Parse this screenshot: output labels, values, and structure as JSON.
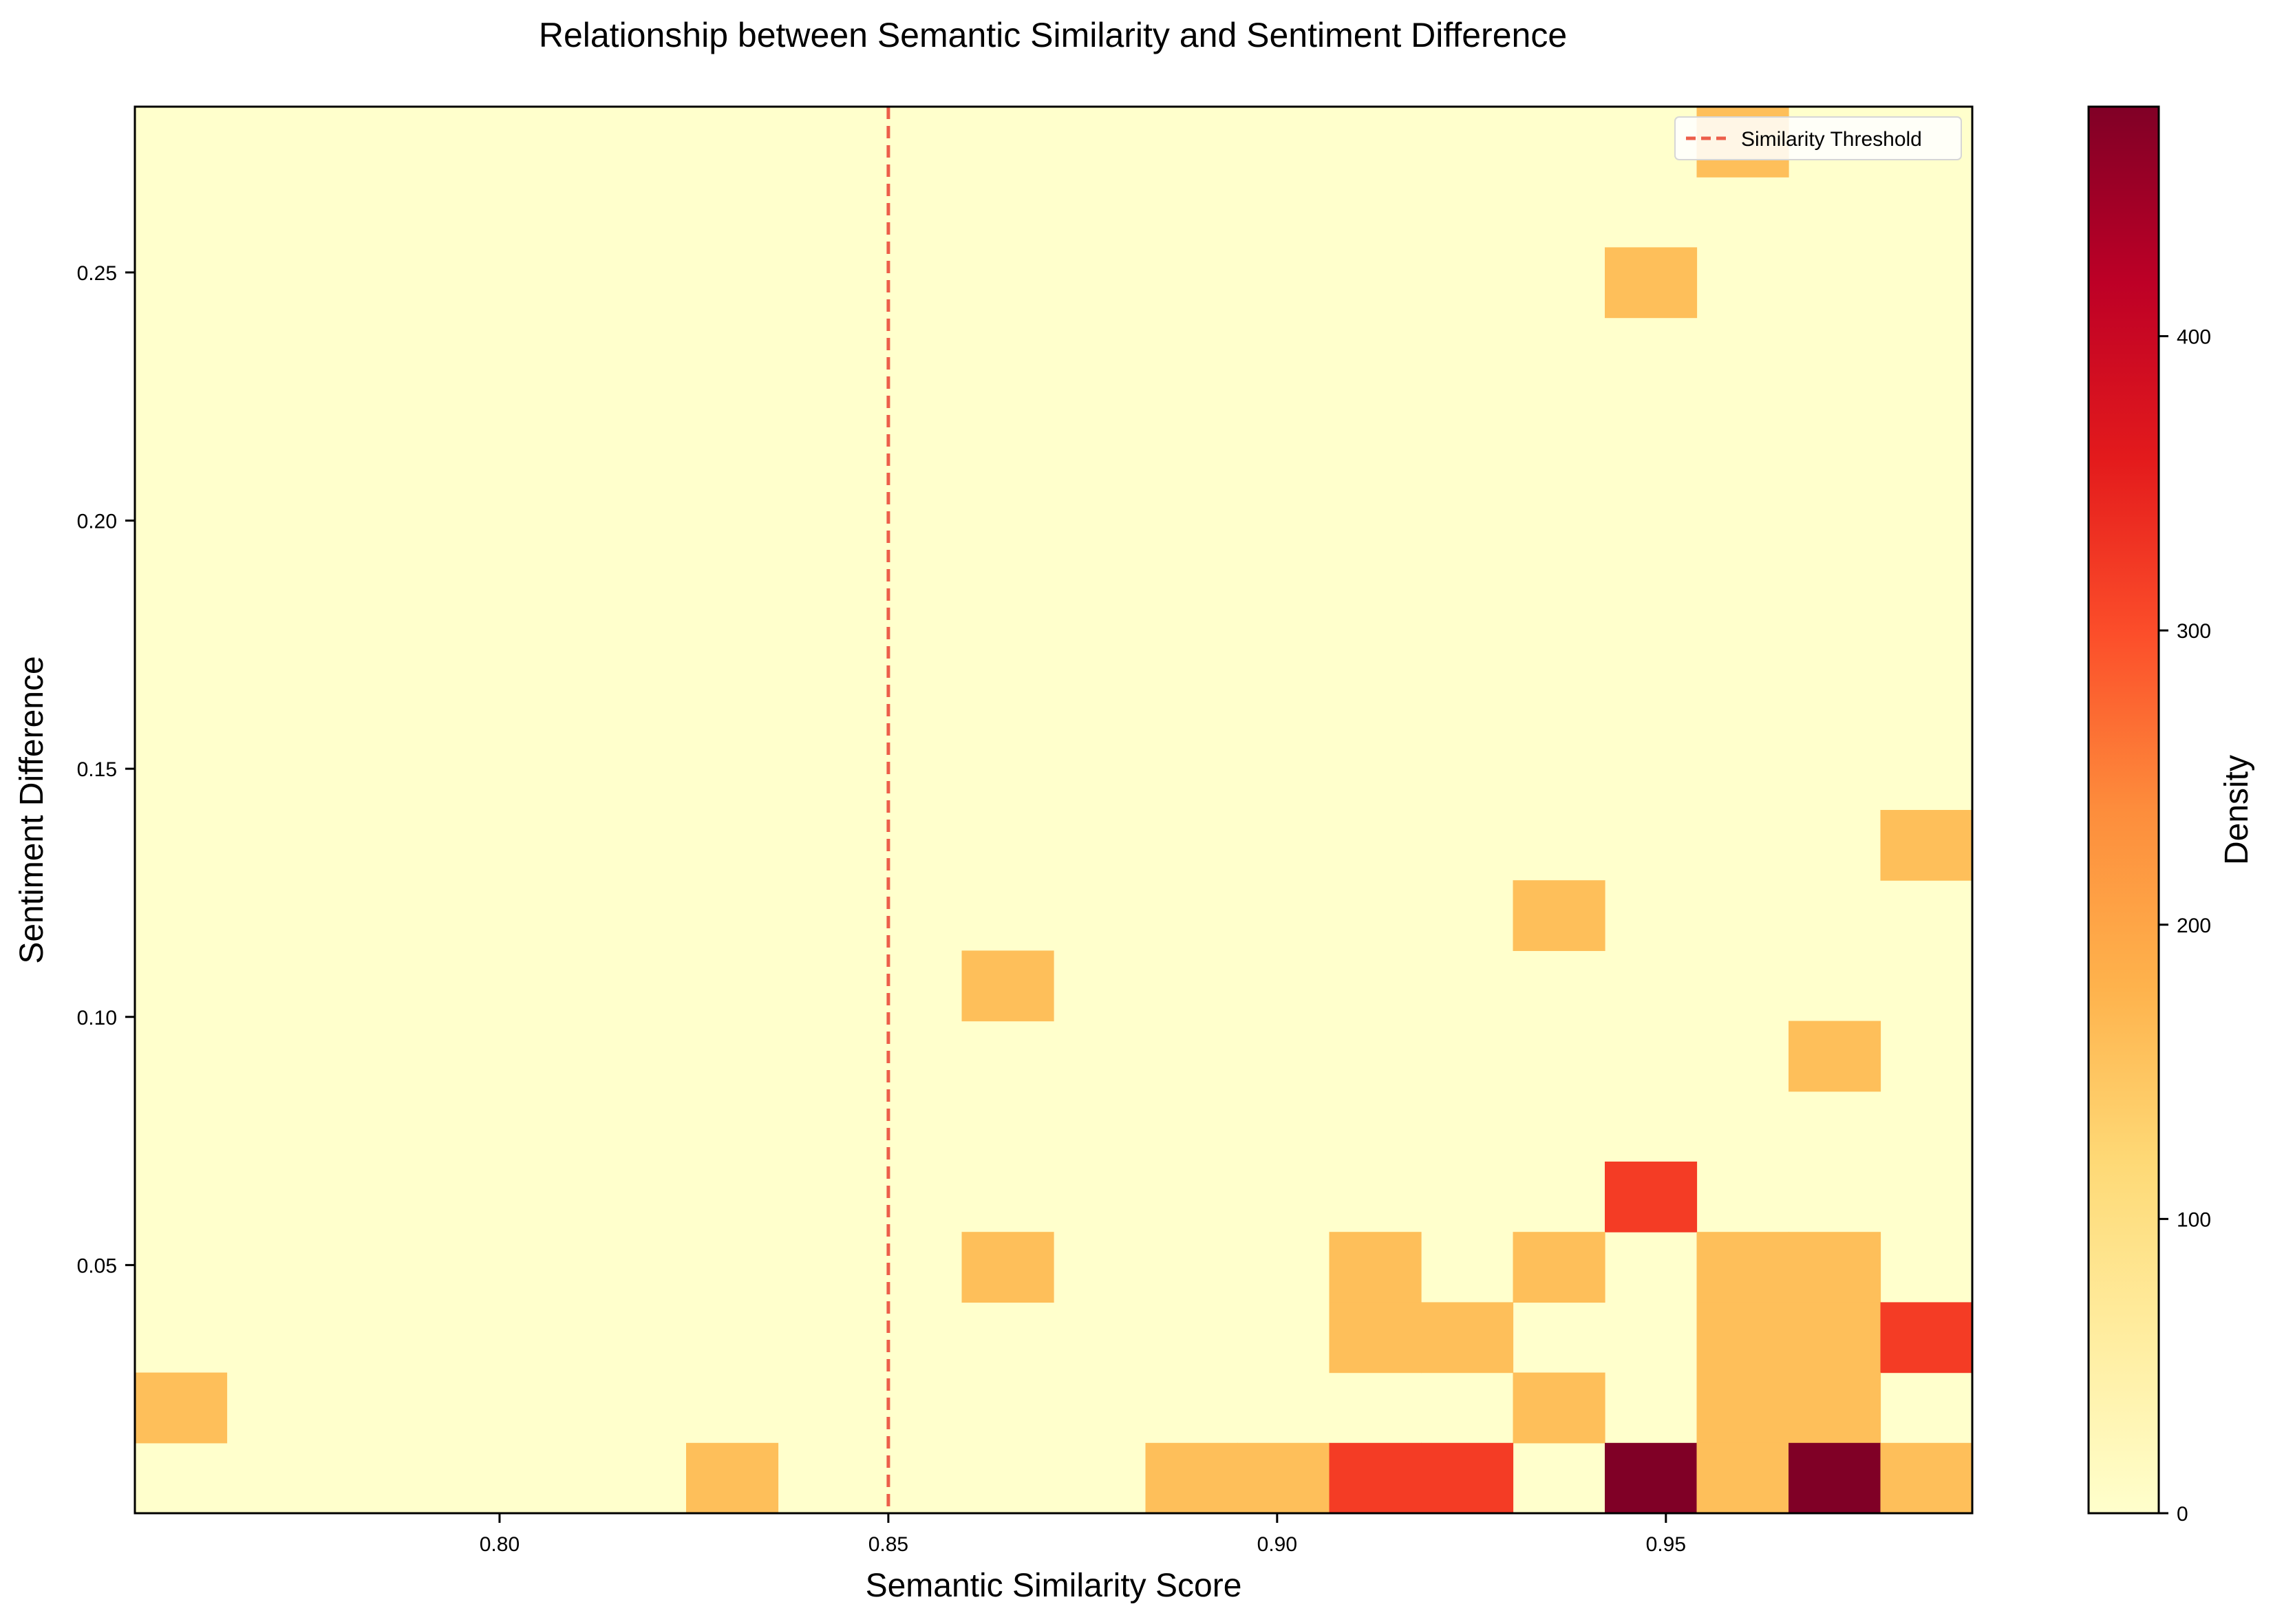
{
  "chart_data": {
    "type": "heatmap",
    "title": "Relationship between Semantic Similarity and Sentiment Difference",
    "xlabel": "Semantic Similarity Score",
    "ylabel": "Sentiment Difference",
    "xlim": [
      0.7531,
      0.9894
    ],
    "ylim": [
      0.0,
      0.2834
    ],
    "x_ticks": [
      0.8,
      0.85,
      0.9,
      0.95
    ],
    "x_tick_labels": [
      "0.80",
      "0.85",
      "0.90",
      "0.95"
    ],
    "y_ticks": [
      0.05,
      0.1,
      0.15,
      0.2,
      0.25
    ],
    "y_tick_labels": [
      "0.05",
      "0.10",
      "0.15",
      "0.20",
      "0.25"
    ],
    "grid": false,
    "legend": {
      "position": "top-right",
      "entries": [
        "Similarity Threshold"
      ]
    },
    "threshold_line": {
      "name": "Similarity Threshold",
      "x": 0.85,
      "color": "#ec5e4a",
      "style": "dashed"
    },
    "colorbar": {
      "label": "Density",
      "min": 0,
      "max": 478,
      "ticks": [
        0,
        100,
        200,
        300,
        400
      ],
      "tick_labels": [
        "0",
        "100",
        "200",
        "300",
        "400"
      ],
      "colormap": "YlOrRd"
    },
    "bins": {
      "x_count": 20,
      "y_count": 20
    },
    "cells": [
      {
        "xi": 17,
        "yi": 19,
        "v": 159
      },
      {
        "xi": 16,
        "yi": 17,
        "v": 159
      },
      {
        "xi": 19,
        "yi": 9,
        "v": 159
      },
      {
        "xi": 15,
        "yi": 8,
        "v": 159
      },
      {
        "xi": 9,
        "yi": 7,
        "v": 159
      },
      {
        "xi": 18,
        "yi": 6,
        "v": 159
      },
      {
        "xi": 16,
        "yi": 4,
        "v": 319
      },
      {
        "xi": 9,
        "yi": 3,
        "v": 159
      },
      {
        "xi": 13,
        "yi": 3,
        "v": 159
      },
      {
        "xi": 15,
        "yi": 3,
        "v": 159
      },
      {
        "xi": 17,
        "yi": 3,
        "v": 159
      },
      {
        "xi": 18,
        "yi": 3,
        "v": 159
      },
      {
        "xi": 13,
        "yi": 2,
        "v": 159
      },
      {
        "xi": 14,
        "yi": 2,
        "v": 159
      },
      {
        "xi": 17,
        "yi": 2,
        "v": 159
      },
      {
        "xi": 18,
        "yi": 2,
        "v": 159
      },
      {
        "xi": 19,
        "yi": 2,
        "v": 319
      },
      {
        "xi": 0,
        "yi": 1,
        "v": 159
      },
      {
        "xi": 15,
        "yi": 1,
        "v": 159
      },
      {
        "xi": 17,
        "yi": 1,
        "v": 159
      },
      {
        "xi": 18,
        "yi": 1,
        "v": 159
      },
      {
        "xi": 6,
        "yi": 0,
        "v": 159
      },
      {
        "xi": 11,
        "yi": 0,
        "v": 159
      },
      {
        "xi": 12,
        "yi": 0,
        "v": 159
      },
      {
        "xi": 13,
        "yi": 0,
        "v": 319
      },
      {
        "xi": 14,
        "yi": 0,
        "v": 319
      },
      {
        "xi": 16,
        "yi": 0,
        "v": 478
      },
      {
        "xi": 17,
        "yi": 0,
        "v": 159
      },
      {
        "xi": 18,
        "yi": 0,
        "v": 478
      },
      {
        "xi": 19,
        "yi": 0,
        "v": 159
      }
    ]
  }
}
